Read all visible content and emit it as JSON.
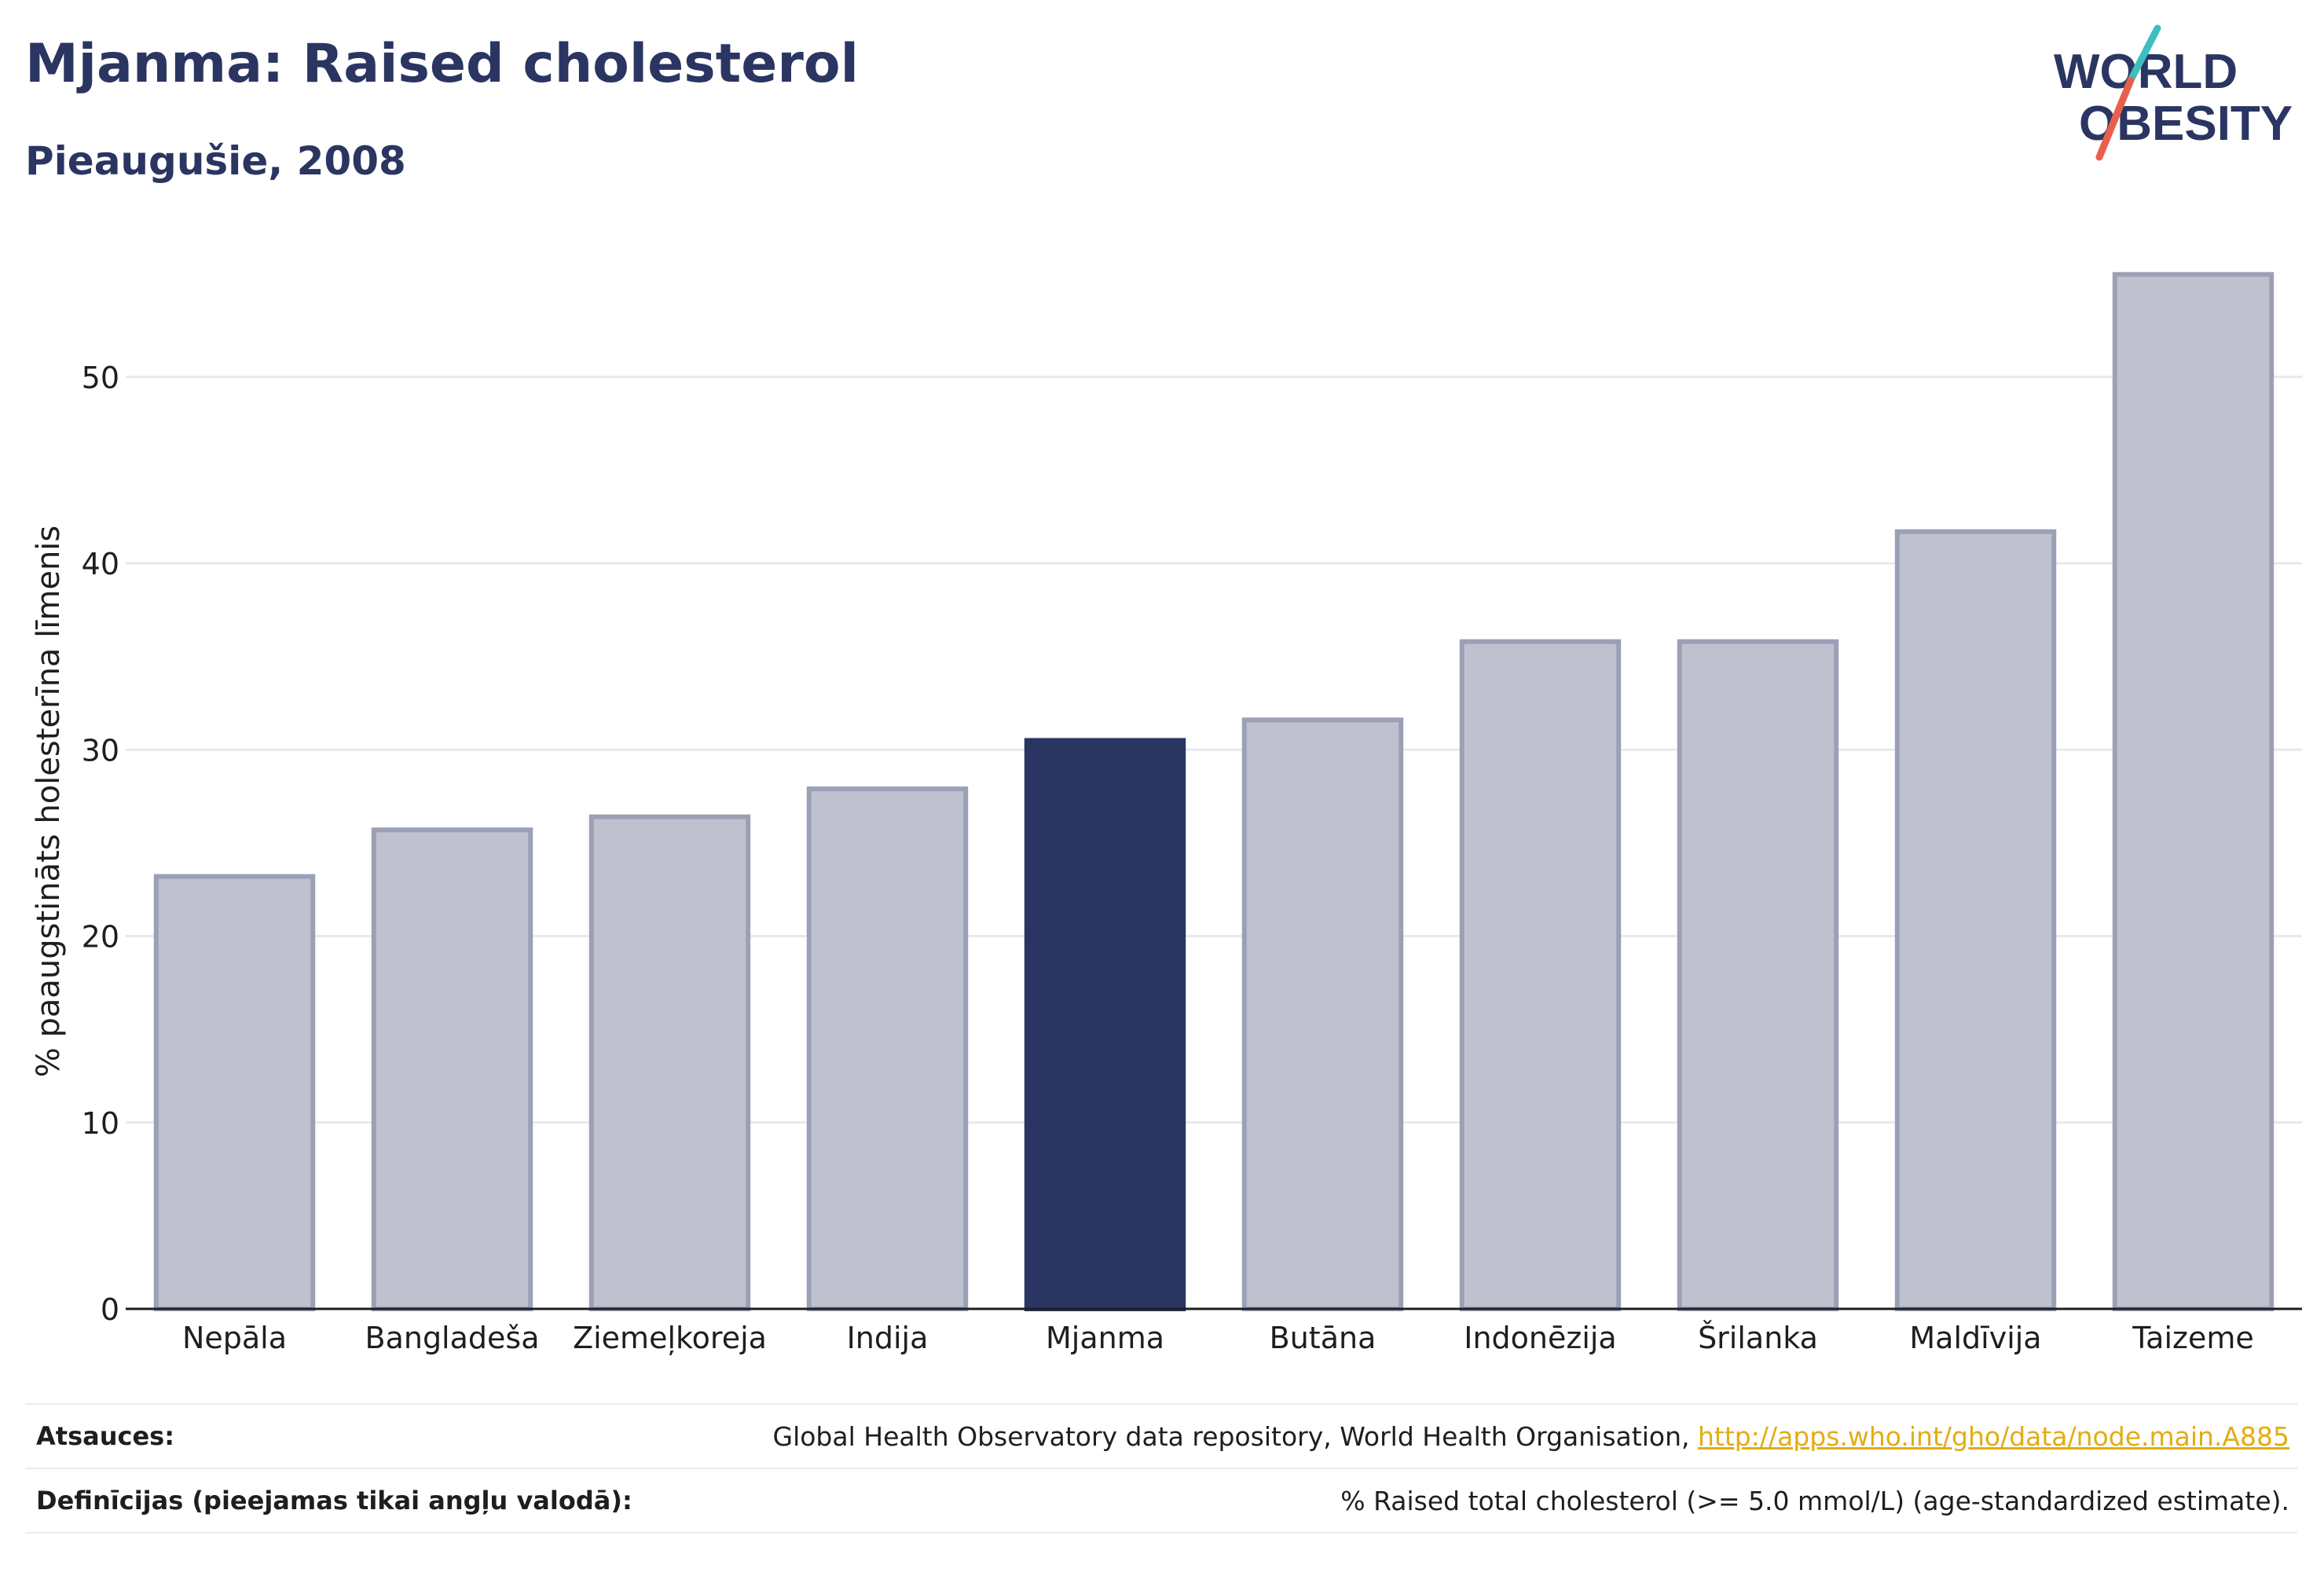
{
  "title": "Mjanma: Raised cholesterol",
  "subtitle": "Pieaugušie, 2008",
  "logo": {
    "line1": "WORLD",
    "line2": "OBESITY"
  },
  "colors": {
    "highlight": "#2b3562",
    "bar": "#bfc2ce",
    "bar_stroke": "#9ba0b6",
    "grid": "#e8e9ee",
    "axis": "#1e1e1e",
    "link": "#e3ac11",
    "logo_text": "#2b3562",
    "logo_slash_top": "#3bbfbf",
    "logo_slash_bottom": "#e8604c"
  },
  "chart_data": {
    "type": "bar",
    "categories": [
      "Nepāla",
      "Bangladeša",
      "Ziemeļkoreja",
      "Indija",
      "Mjanma",
      "Butāna",
      "Indonēzija",
      "Šrilanka",
      "Maldīvija",
      "Taizeme"
    ],
    "values": [
      23.2,
      25.7,
      26.4,
      27.9,
      30.5,
      31.6,
      35.8,
      35.8,
      41.7,
      55.5
    ],
    "highlight_category": "Mjanma",
    "ylabel": "% paaugstināts holesterīna līmenis",
    "ylim": [
      0,
      58
    ],
    "yticks": [
      0,
      10,
      20,
      30,
      40,
      50
    ],
    "grid": true
  },
  "footer": {
    "sources_label": "Atsauces:",
    "sources_text": "Global Health Observatory data repository, World Health Organisation,",
    "sources_link": "http://apps.who.int/gho/data/node.main.A885",
    "definitions_label": "Definīcijas (pieejamas tikai angļu valodā):",
    "definitions_text": "% Raised total cholesterol (>= 5.0 mmol/L) (age-standardized estimate)."
  }
}
